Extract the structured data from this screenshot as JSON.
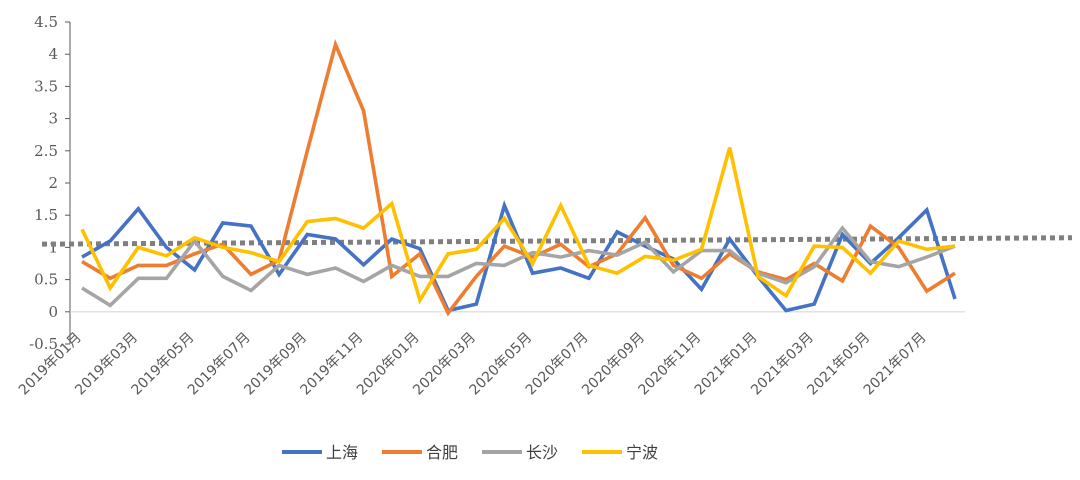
{
  "chart_data": {
    "type": "line",
    "x": [
      "2019年01月",
      "2019年02月",
      "2019年03月",
      "2019年04月",
      "2019年05月",
      "2019年06月",
      "2019年07月",
      "2019年08月",
      "2019年09月",
      "2019年10月",
      "2019年11月",
      "2019年12月",
      "2020年01月",
      "2020年02月",
      "2020年03月",
      "2020年04月",
      "2020年05月",
      "2020年06月",
      "2020年07月",
      "2020年08月",
      "2020年09月",
      "2020年10月",
      "2020年11月",
      "2020年12月",
      "2021年01月",
      "2021年02月",
      "2021年03月",
      "2021年04月",
      "2021年05月",
      "2021年06月",
      "2021年07月",
      "2021年08月"
    ],
    "x_tick_labels": [
      "2019年01月",
      "2019年03月",
      "2019年05月",
      "2019年07月",
      "2019年09月",
      "2019年11月",
      "2020年01月",
      "2020年03月",
      "2020年05月",
      "2020年07月",
      "2020年09月",
      "2020年11月",
      "2021年01月",
      "2021年03月",
      "2021年05月",
      "2021年07月"
    ],
    "y_ticks": [
      "-0.5",
      "0",
      "0.5",
      "1",
      "1.5",
      "2",
      "2.5",
      "3",
      "3.5",
      "4",
      "4.5"
    ],
    "ylim": [
      -0.5,
      4.5
    ],
    "series": [
      {
        "name": "上海",
        "color": "#4472C4",
        "values": [
          0.85,
          1.1,
          1.6,
          1.0,
          0.65,
          1.38,
          1.33,
          0.58,
          1.2,
          1.13,
          0.73,
          1.13,
          0.98,
          0.02,
          0.12,
          1.65,
          0.6,
          0.68,
          0.52,
          1.24,
          1.02,
          0.82,
          0.35,
          1.13,
          0.55,
          0.02,
          0.12,
          1.2,
          0.75,
          1.15,
          1.58,
          0.2
        ]
      },
      {
        "name": "合肥",
        "color": "#ED7D31",
        "values": [
          0.78,
          0.52,
          0.72,
          0.72,
          0.9,
          1.05,
          0.58,
          0.8,
          2.5,
          4.15,
          3.12,
          0.55,
          0.9,
          -0.02,
          0.55,
          1.02,
          0.85,
          1.05,
          0.7,
          0.9,
          1.46,
          0.72,
          0.52,
          0.9,
          0.62,
          0.5,
          0.75,
          0.48,
          1.33,
          1.0,
          0.32,
          0.6
        ]
      },
      {
        "name": "长沙",
        "color": "#A5A5A5",
        "values": [
          0.37,
          0.1,
          0.52,
          0.52,
          1.1,
          0.55,
          0.33,
          0.72,
          0.58,
          0.68,
          0.47,
          0.72,
          0.55,
          0.55,
          0.75,
          0.72,
          0.92,
          0.85,
          0.95,
          0.88,
          1.08,
          0.62,
          0.95,
          0.95,
          0.6,
          0.45,
          0.7,
          1.3,
          0.78,
          0.7,
          0.85,
          1.02
        ]
      },
      {
        "name": "宁波",
        "color": "#FFC000",
        "values": [
          1.28,
          0.37,
          1.0,
          0.87,
          1.15,
          1.0,
          0.92,
          0.78,
          1.4,
          1.45,
          1.3,
          1.68,
          0.18,
          0.9,
          0.97,
          1.45,
          0.75,
          1.65,
          0.72,
          0.6,
          0.86,
          0.8,
          0.97,
          2.55,
          0.55,
          0.25,
          1.02,
          1.0,
          0.6,
          1.1,
          0.97,
          1.02
        ]
      }
    ],
    "reference_line": {
      "style": "dotted",
      "color": "#7F7F7F",
      "y_start": 1.05,
      "y_end": 1.15
    },
    "legend_position": "bottom",
    "grid": false,
    "title": "",
    "xlabel": "",
    "ylabel": ""
  }
}
